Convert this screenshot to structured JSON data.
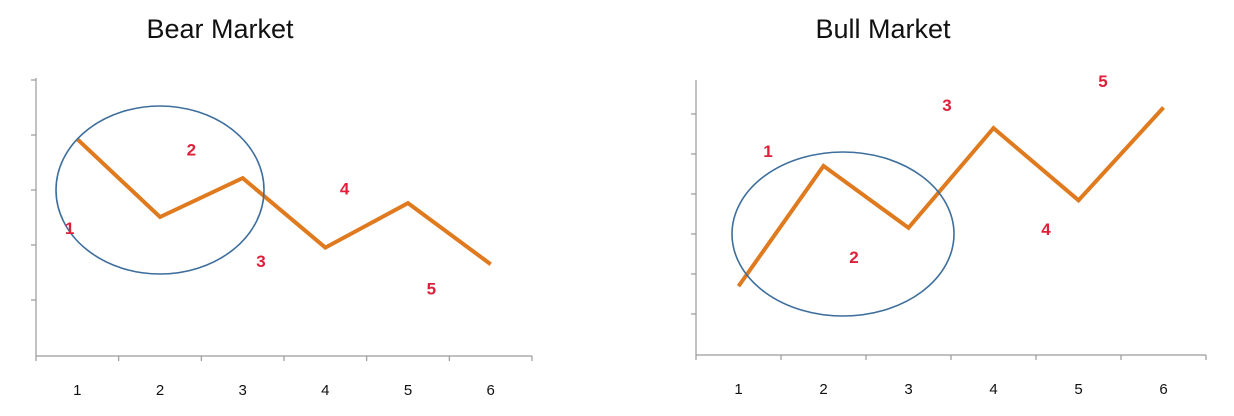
{
  "chart_data": [
    {
      "type": "line",
      "title": "Bear Market",
      "categories": [
        "1",
        "2",
        "3",
        "4",
        "5",
        "6"
      ],
      "x": [
        1,
        2,
        3,
        4,
        5,
        6
      ],
      "series": [
        {
          "values": [
            7.8,
            5.0,
            6.4,
            3.9,
            5.5,
            3.3
          ]
        }
      ],
      "wave_labels": [
        "1",
        "2",
        "3",
        "4",
        "5"
      ],
      "ylim": [
        0,
        10
      ],
      "grid": false,
      "line_color": "#e07a1f",
      "label_color": "#e0203a",
      "highlight": "ellipse around the first waves (points 1–3)"
    },
    {
      "type": "line",
      "title": "Bull Market",
      "categories": [
        "1",
        "2",
        "3",
        "4",
        "5",
        "6"
      ],
      "x": [
        1,
        2,
        3,
        4,
        5,
        6
      ],
      "series": [
        {
          "values": [
            2.0,
            5.5,
            3.7,
            6.6,
            4.5,
            7.2
          ]
        }
      ],
      "wave_labels": [
        "1",
        "2",
        "3",
        "4",
        "5"
      ],
      "ylim": [
        0,
        8
      ],
      "grid": false,
      "line_color": "#e07a1f",
      "label_color": "#e0203a",
      "highlight": "ellipse around the first waves (points 1–3)"
    }
  ]
}
